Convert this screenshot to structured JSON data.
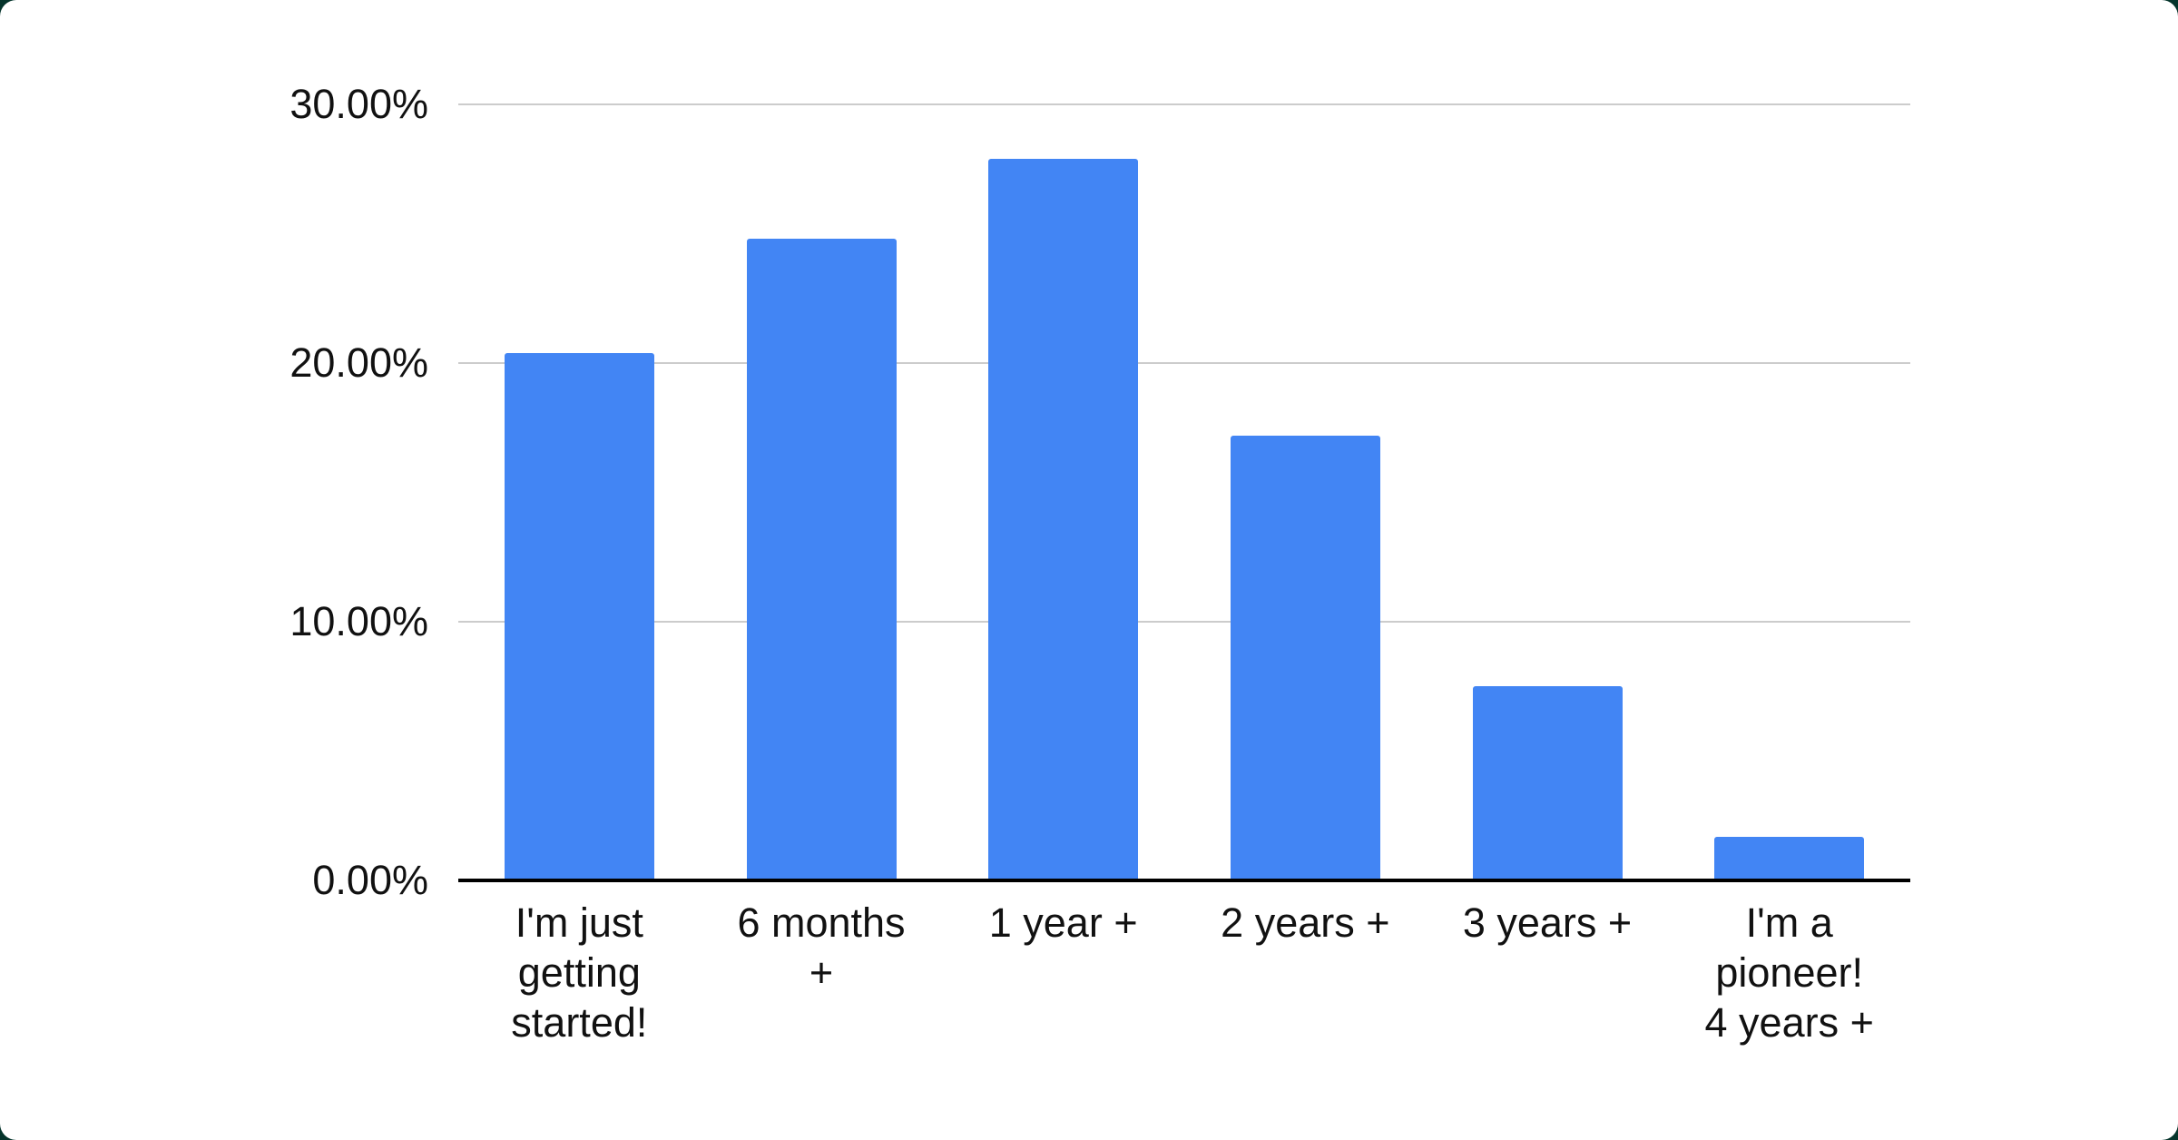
{
  "page": {
    "background_color": "#05342b",
    "card_color": "#ffffff"
  },
  "chart_data": {
    "type": "bar",
    "title": "",
    "categories": [
      "I'm just\ngetting\nstarted!",
      "6 months\n+",
      "1 year +",
      "2 years +",
      "3 years +",
      "I'm a\npioneer!\n4 years +"
    ],
    "values": [
      20.4,
      24.8,
      27.9,
      17.2,
      7.5,
      1.7
    ],
    "unit": "%",
    "ylim": [
      0,
      30
    ],
    "y_ticks": [
      {
        "label": "30.00%",
        "value": 30
      },
      {
        "label": "20.00%",
        "value": 20
      },
      {
        "label": "10.00%",
        "value": 10
      },
      {
        "label": "0.00%",
        "value": 0
      }
    ],
    "grid": true,
    "legend": "none",
    "bar_color": "#4285f4",
    "grid_color": "#cccccc",
    "axis_color": "#000000",
    "text_color": "#111111"
  }
}
